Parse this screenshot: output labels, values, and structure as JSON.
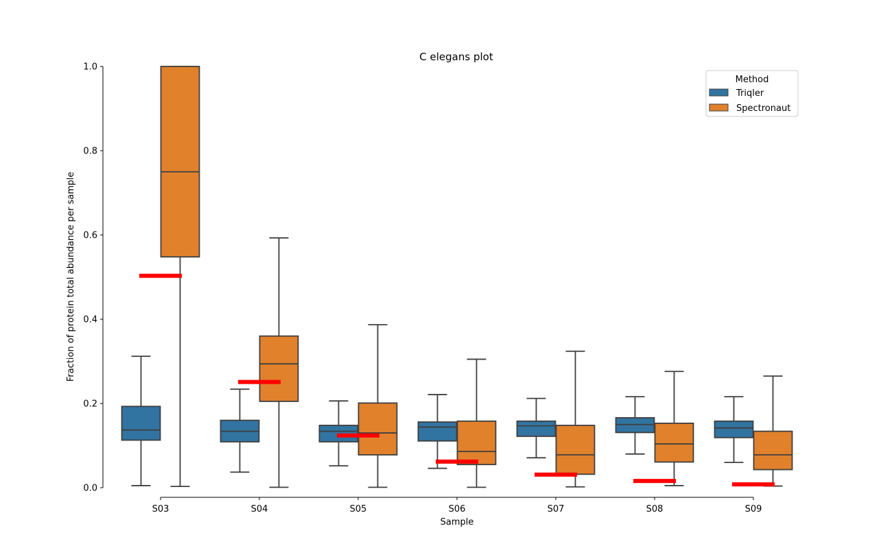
{
  "chart_data": {
    "type": "box",
    "title": "C elegans plot",
    "xlabel": "Sample",
    "ylabel": "Fraction of protein total abundance per sample",
    "ylim": [
      0.0,
      1.0
    ],
    "yticks": [
      "0.0",
      "0.2",
      "0.4",
      "0.6",
      "0.8",
      "1.0"
    ],
    "categories": [
      "S03",
      "S04",
      "S05",
      "S06",
      "S07",
      "S08",
      "S09"
    ],
    "legend": {
      "title": "Method",
      "position": "top-right"
    },
    "series": [
      {
        "name": "Triqler",
        "color": "#3274a1",
        "boxes": [
          {
            "whislo": 0.005,
            "q1": 0.113,
            "median": 0.137,
            "q3": 0.193,
            "whishi": 0.312
          },
          {
            "whislo": 0.037,
            "q1": 0.109,
            "median": 0.134,
            "q3": 0.16,
            "whishi": 0.234
          },
          {
            "whislo": 0.052,
            "q1": 0.109,
            "median": 0.134,
            "q3": 0.148,
            "whishi": 0.206
          },
          {
            "whislo": 0.046,
            "q1": 0.111,
            "median": 0.144,
            "q3": 0.156,
            "whishi": 0.221
          },
          {
            "whislo": 0.071,
            "q1": 0.122,
            "median": 0.147,
            "q3": 0.158,
            "whishi": 0.212
          },
          {
            "whislo": 0.08,
            "q1": 0.131,
            "median": 0.15,
            "q3": 0.166,
            "whishi": 0.216
          },
          {
            "whislo": 0.06,
            "q1": 0.119,
            "median": 0.142,
            "q3": 0.158,
            "whishi": 0.216
          }
        ]
      },
      {
        "name": "Spectronaut",
        "color": "#e1812c",
        "boxes": [
          {
            "whislo": 0.003,
            "q1": 0.548,
            "median": 0.75,
            "q3": 1.0,
            "whishi": 1.0
          },
          {
            "whislo": 0.001,
            "q1": 0.205,
            "median": 0.294,
            "q3": 0.36,
            "whishi": 0.593
          },
          {
            "whislo": 0.001,
            "q1": 0.078,
            "median": 0.13,
            "q3": 0.201,
            "whishi": 0.387
          },
          {
            "whislo": 0.001,
            "q1": 0.055,
            "median": 0.086,
            "q3": 0.158,
            "whishi": 0.305
          },
          {
            "whislo": 0.002,
            "q1": 0.032,
            "median": 0.078,
            "q3": 0.148,
            "whishi": 0.324
          },
          {
            "whislo": 0.005,
            "q1": 0.061,
            "median": 0.104,
            "q3": 0.153,
            "whishi": 0.276
          },
          {
            "whislo": 0.004,
            "q1": 0.043,
            "median": 0.078,
            "q3": 0.134,
            "whishi": 0.265
          }
        ]
      }
    ],
    "reference_lines": {
      "color": "#ff0000",
      "values": [
        0.503,
        0.251,
        0.124,
        0.062,
        0.031,
        0.016,
        0.008
      ]
    }
  }
}
